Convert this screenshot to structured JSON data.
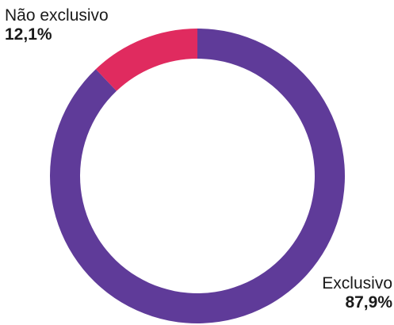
{
  "chart_data": {
    "type": "pie",
    "donut": true,
    "start_angle_deg": 0,
    "direction": "clockwise",
    "slices": [
      {
        "label": "Exclusivo",
        "value": 87.9,
        "value_label": "87,9%",
        "color": "#5f3b99"
      },
      {
        "label": "Não exclusivo",
        "value": 12.1,
        "value_label": "12,1%",
        "color": "#e02b5f"
      }
    ]
  }
}
